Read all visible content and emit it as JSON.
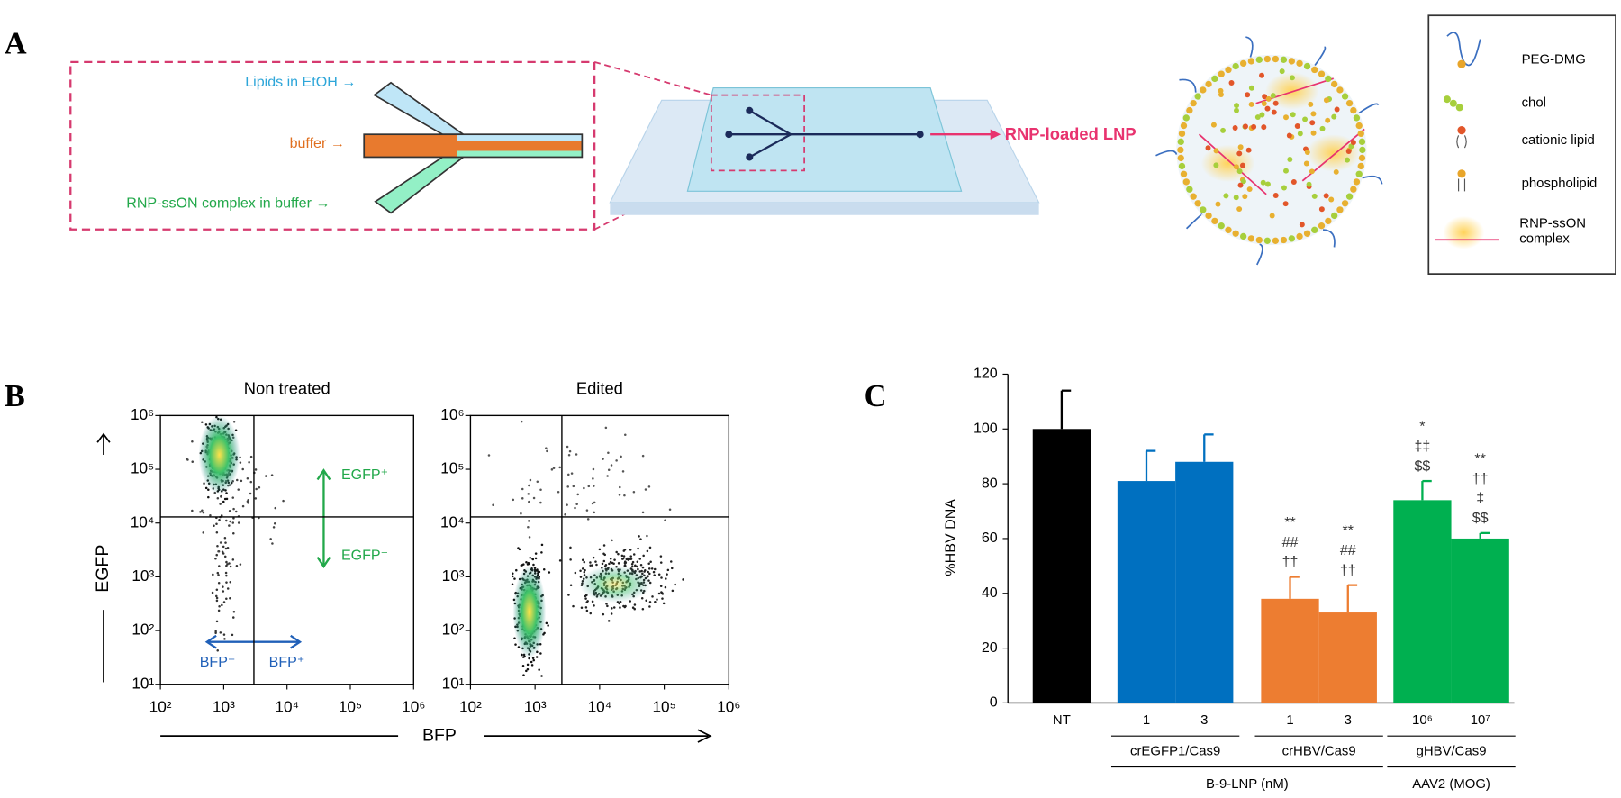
{
  "panel_labels": [
    "A",
    "B",
    "C"
  ],
  "panel_a": {
    "inlets": [
      "Lipids in EtOH →",
      "buffer →",
      "RNP-ssON complex in buffer →"
    ],
    "output": "RNP-loaded LNP",
    "legend": [
      "PEG-DMG",
      "chol",
      "cationic lipid",
      "phospholipid",
      "RNP-ssON complex"
    ]
  },
  "panel_b": {
    "x_label": "BFP",
    "y_label": "EGFP",
    "annotations": [
      "EGFP⁺",
      "EGFP⁻",
      "BFP⁻",
      "BFP⁺"
    ],
    "plots": [
      {
        "title": "Non treated",
        "log": true,
        "xlim": [
          100,
          1000000
        ],
        "ylim": [
          10,
          1000000
        ],
        "xticks": [
          {
            "value": 100,
            "label": "10²"
          },
          {
            "value": 1000,
            "label": "10³"
          },
          {
            "value": 10000,
            "label": "10⁴"
          },
          {
            "value": 100000,
            "label": "10⁵"
          },
          {
            "value": 1000000,
            "label": "10⁶"
          }
        ],
        "yticks": [
          {
            "value": 10,
            "label": "10¹"
          },
          {
            "value": 100,
            "label": "10²"
          },
          {
            "value": 1000,
            "label": "10³"
          },
          {
            "value": 10000,
            "label": "10⁴"
          },
          {
            "value": 100000,
            "label": "10⁵"
          },
          {
            "value": 1000000,
            "label": "10⁶"
          }
        ],
        "gate": [
          3000,
          13000
        ]
      },
      {
        "title": "Edited",
        "log": true,
        "xlim": [
          100,
          1000000
        ],
        "ylim": [
          10,
          1000000
        ],
        "xticks": [
          {
            "value": 100,
            "label": "10²"
          },
          {
            "value": 1000,
            "label": "10³"
          },
          {
            "value": 10000,
            "label": "10⁴"
          },
          {
            "value": 100000,
            "label": "10⁵"
          },
          {
            "value": 1000000,
            "label": "10⁶"
          }
        ],
        "yticks": [
          {
            "value": 10,
            "label": "10¹"
          },
          {
            "value": 100,
            "label": "10²"
          },
          {
            "value": 1000,
            "label": "10³"
          },
          {
            "value": 10000,
            "label": "10⁴"
          },
          {
            "value": 100000,
            "label": "10⁵"
          },
          {
            "value": 1000000,
            "label": "10⁶"
          }
        ],
        "gate": [
          2600,
          13000
        ]
      }
    ]
  },
  "chart_data": {
    "type": "bar",
    "ylabel": "%HBV DNA",
    "categories": [
      "NT",
      "1",
      "3",
      "1",
      "3",
      "10⁶",
      "10⁷"
    ],
    "values": [
      100,
      81,
      88,
      38,
      33,
      74,
      60
    ],
    "errors": [
      14,
      11,
      10,
      8,
      10,
      7,
      2
    ],
    "colors": [
      "#000000",
      "#0070c0",
      "#0070c0",
      "#ed7d31",
      "#ed7d31",
      "#00b050",
      "#00b050"
    ],
    "significance": [
      null,
      null,
      null,
      [
        "**",
        "##",
        "††"
      ],
      [
        "**",
        "##",
        "††"
      ],
      [
        "*",
        "‡‡",
        "$$"
      ],
      [
        "**",
        "††",
        "‡",
        "$$"
      ]
    ],
    "group_labels": [
      "crEGFP1/Cas9",
      "crHBV/Cas9",
      "gHBV/Cas9"
    ],
    "outer_group_labels": [
      "B-9-LNP (nM)",
      "AAV2 (MOG)"
    ],
    "ylim": [
      0,
      120
    ],
    "yticks": [
      0,
      20,
      40,
      60,
      80,
      100,
      120
    ]
  }
}
